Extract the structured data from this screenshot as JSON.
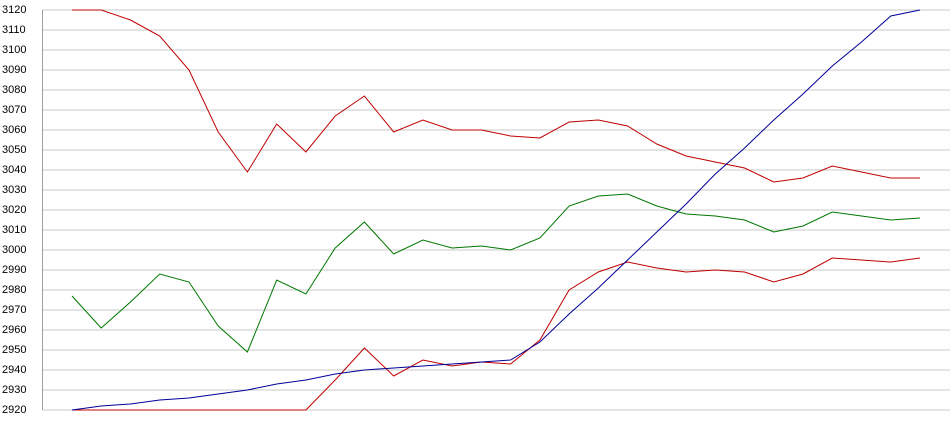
{
  "chart_data": {
    "type": "line",
    "categories": [
      null,
      null,
      null,
      null,
      null,
      null,
      null,
      null,
      null,
      null,
      null,
      null,
      null,
      null,
      null,
      null,
      null,
      null,
      null,
      null,
      null,
      null,
      null,
      null,
      null,
      null,
      null,
      null,
      null,
      null
    ],
    "series": [
      {
        "color": "#c00000",
        "values": [
          3120,
          3120,
          3115,
          3107,
          3090,
          3059,
          3039,
          3063,
          3049,
          3067,
          3077,
          3059,
          3065,
          3060,
          3060,
          3057,
          3056,
          3064,
          3065,
          3062,
          3053,
          3047,
          3044,
          3041,
          3034,
          3036,
          3042,
          3039,
          3036,
          3036
        ]
      },
      {
        "color": "#007800",
        "values": [
          2977,
          2961,
          2974,
          2988,
          2984,
          2962,
          2949,
          2985,
          2978,
          3001,
          3014,
          2998,
          3005,
          3001,
          3002,
          3000,
          3006,
          3022,
          3027,
          3028,
          3022,
          3018,
          3017,
          3015,
          3009,
          3012,
          3019,
          3017,
          3015,
          3016
        ]
      },
      {
        "color": "#c00000",
        "values": [
          2920,
          2920,
          2920,
          2920,
          2920,
          2920,
          2920,
          2920,
          2920,
          2935,
          2951,
          2937,
          2945,
          2942,
          2944,
          2943,
          2955,
          2980,
          2989,
          2994,
          2991,
          2989,
          2990,
          2989,
          2984,
          2988,
          2996,
          2995,
          2994,
          2996
        ]
      },
      {
        "color": "#000099",
        "values": [
          2920,
          2922,
          2923,
          2925,
          2926,
          2928,
          2930,
          2933,
          2935,
          2938,
          2940,
          2941,
          2942,
          2943,
          2944,
          2945,
          2954,
          2968,
          2981,
          2995,
          3009,
          3023,
          3038,
          3051,
          3065,
          3078,
          3092,
          3104,
          3117,
          3120
        ]
      }
    ],
    "ylim": [
      2920,
      3120
    ],
    "yticks": [
      2920,
      2930,
      2940,
      2950,
      2960,
      2970,
      2980,
      2990,
      3000,
      3010,
      3020,
      3030,
      3040,
      3050,
      3060,
      3070,
      3080,
      3090,
      3100,
      3110,
      3120
    ],
    "grid": true
  }
}
